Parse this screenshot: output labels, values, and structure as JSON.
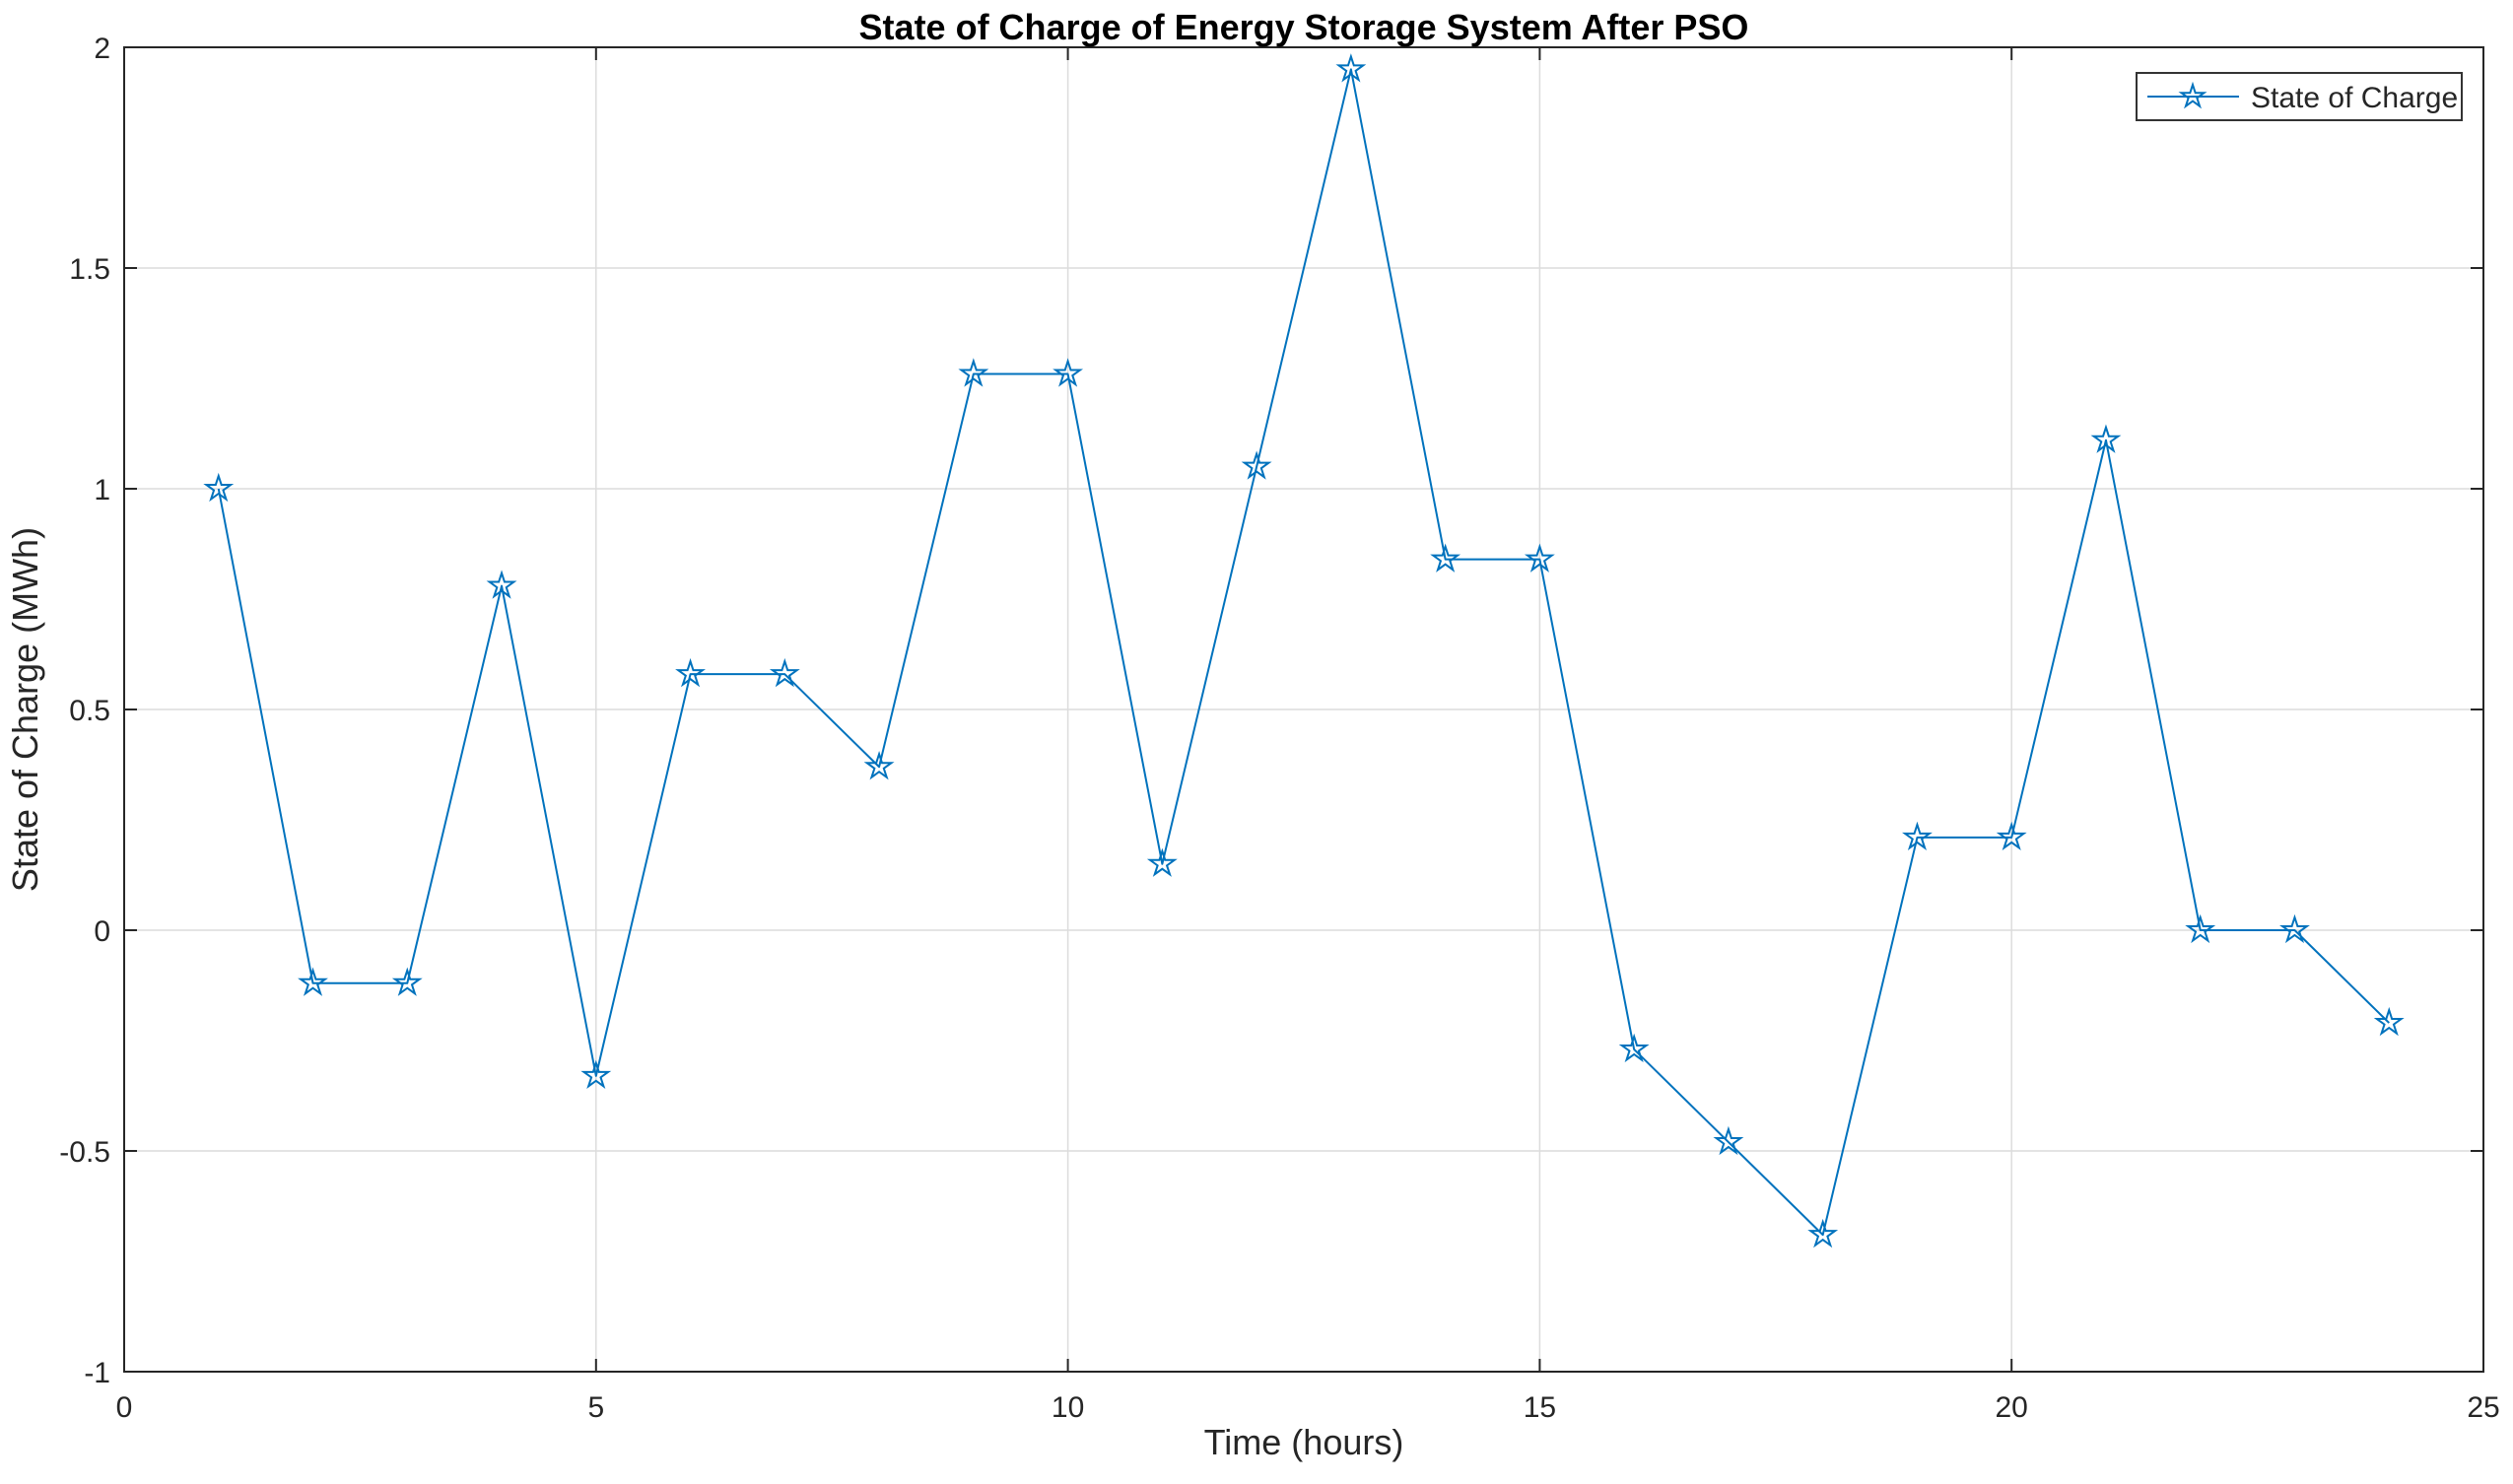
{
  "figure": {
    "background": "#ffffff"
  },
  "chart_data": {
    "type": "line",
    "title": "State of Charge of Energy Storage System After PSO",
    "xlabel": "Time (hours)",
    "ylabel": "State of Charge (MWh)",
    "xlim": [
      0,
      25
    ],
    "ylim": [
      -1,
      2
    ],
    "xticks": [
      0,
      5,
      10,
      15,
      20,
      25
    ],
    "yticks": [
      -1,
      -0.5,
      0,
      0.5,
      1,
      1.5,
      2
    ],
    "grid": true,
    "legend": {
      "position": "top-right",
      "entries": [
        {
          "label": "State of Charge",
          "marker": "pentagram",
          "color": "#0072BD"
        }
      ]
    },
    "series": [
      {
        "name": "State of Charge",
        "color": "#0072BD",
        "marker": "pentagram",
        "x": [
          1,
          2,
          3,
          4,
          5,
          6,
          7,
          8,
          9,
          10,
          11,
          12,
          13,
          14,
          15,
          16,
          17,
          18,
          19,
          20,
          21,
          22,
          23,
          24
        ],
        "y": [
          1.0,
          -0.12,
          -0.12,
          0.78,
          -0.33,
          0.58,
          0.58,
          0.37,
          1.26,
          1.26,
          0.15,
          1.05,
          1.95,
          0.84,
          0.84,
          -0.27,
          -0.48,
          -0.69,
          0.21,
          0.21,
          1.11,
          0.0,
          0.0,
          -0.21
        ]
      }
    ],
    "colors": {
      "axis": "#262626",
      "grid": "#dcdcdc",
      "tick_label": "#262626",
      "title": "#000000",
      "legend_border": "#333333",
      "background": "#ffffff"
    }
  }
}
